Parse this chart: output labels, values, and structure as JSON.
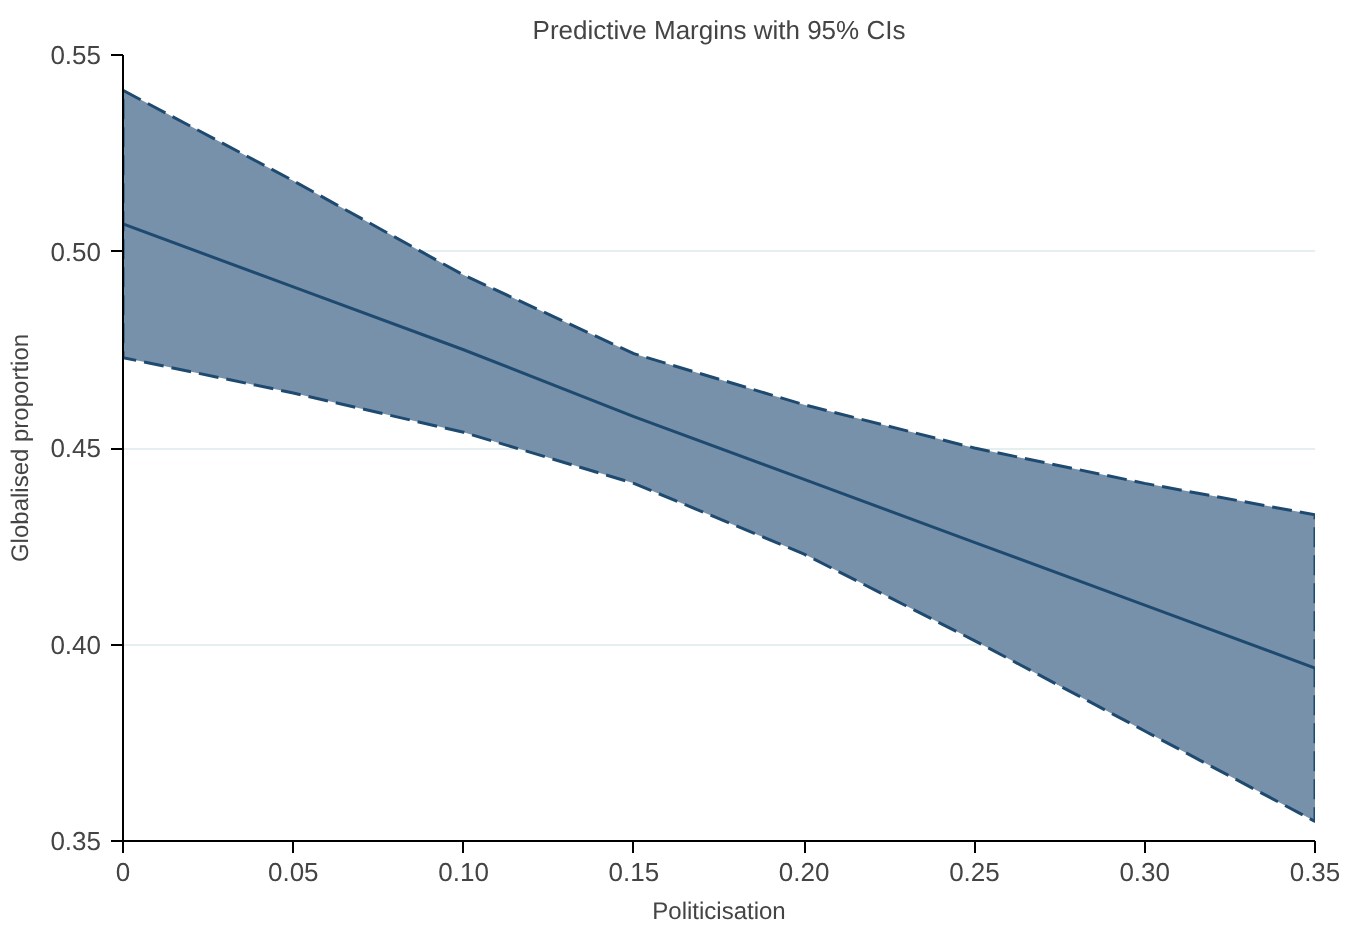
{
  "chart_data": {
    "type": "line",
    "title": "Predictive Margins with 95% CIs",
    "xlabel": "Politicisation",
    "ylabel": "Globalised proportion",
    "x": [
      0,
      0.05,
      0.1,
      0.15,
      0.2,
      0.25,
      0.3,
      0.35
    ],
    "series": [
      {
        "color": "#1f4a70",
        "values": [
          0.507,
          0.491,
          0.475,
          0.458,
          0.442,
          0.426,
          0.41,
          0.394
        ],
        "lower": [
          0.473,
          0.464,
          0.454,
          0.441,
          0.423,
          0.401,
          0.378,
          0.355
        ],
        "upper": [
          0.541,
          0.518,
          0.494,
          0.474,
          0.461,
          0.45,
          0.441,
          0.433
        ]
      }
    ],
    "xlim": [
      0,
      0.35
    ],
    "ylim": [
      0.35,
      0.55
    ],
    "xticks": [
      0,
      0.05,
      {
        "value": 0.1,
        "label": "0.10"
      },
      0.15,
      {
        "value": 0.2,
        "label": "0.20"
      },
      0.25,
      {
        "value": 0.3,
        "label": "0.30"
      },
      0.35
    ],
    "yticks": [
      0.35,
      {
        "value": 0.4,
        "label": "0.40"
      },
      0.45,
      {
        "value": 0.5,
        "label": "0.50"
      },
      0.55
    ],
    "grid": "y",
    "line_style": "solid",
    "marker": "none"
  }
}
